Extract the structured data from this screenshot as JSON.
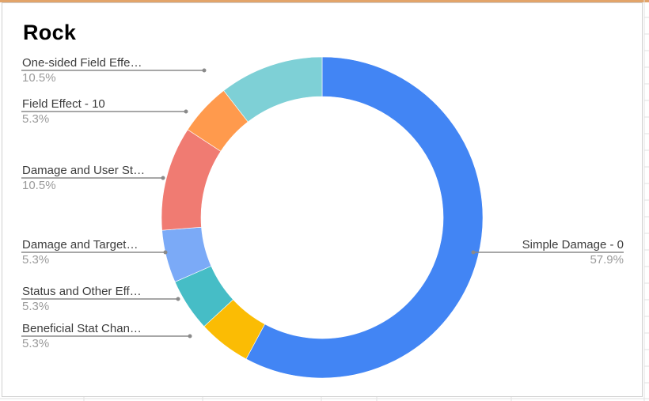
{
  "chart_data": {
    "type": "pie",
    "subtype": "donut",
    "title": "Rock",
    "legend": "labels beside slices",
    "slices": [
      {
        "label": "Simple Damage - 0",
        "value": 57.9,
        "percent_label": "57.9%",
        "color": "#4285f4"
      },
      {
        "label": "Beneficial Stat Chan…",
        "value": 5.3,
        "percent_label": "5.3%",
        "color": "#fbbc04"
      },
      {
        "label": "Status and Other Eff…",
        "value": 5.3,
        "percent_label": "5.3%",
        "color": "#46bdc6"
      },
      {
        "label": "Damage and Target…",
        "value": 5.3,
        "percent_label": "5.3%",
        "color": "#7baaf7"
      },
      {
        "label": "Damage and User St…",
        "value": 10.5,
        "percent_label": "10.5%",
        "color": "#f07b72"
      },
      {
        "label": "Field Effect - 10",
        "value": 5.3,
        "percent_label": "5.3%",
        "color": "#ff9a4d"
      },
      {
        "label": "One-sided Field Effe…",
        "value": 10.5,
        "percent_label": "10.5%",
        "color": "#7ed0d6"
      }
    ]
  }
}
